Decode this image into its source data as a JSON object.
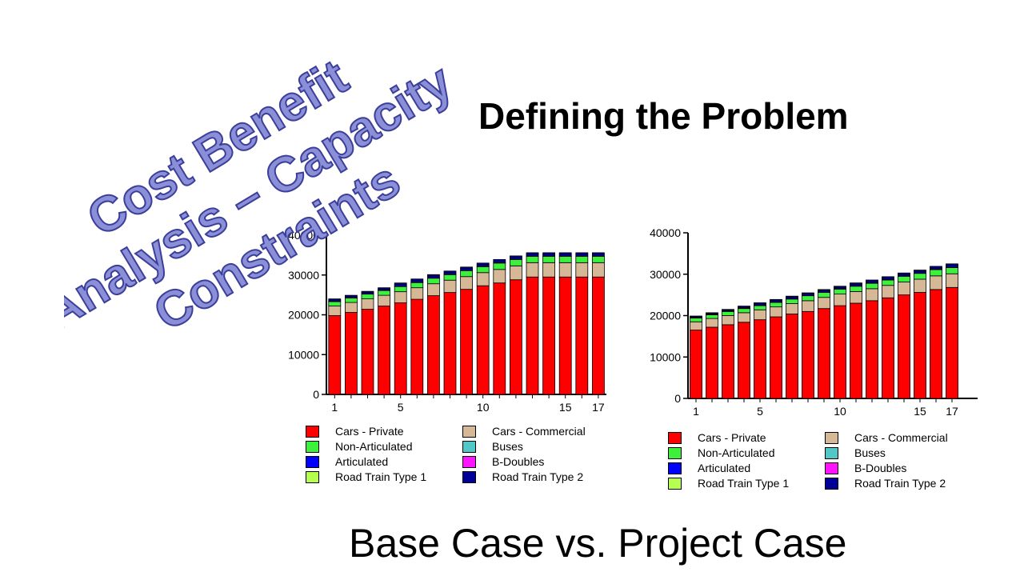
{
  "slide": {
    "heading": "Defining the Problem",
    "subheading": "Base Case vs. Project Case",
    "stamp_lines": [
      "Cost Benefit",
      "Analysis – Capacity",
      "Constraints"
    ]
  },
  "colors": {
    "Cars - Private": "#ff0000",
    "Cars - Commercial": "#d6b896",
    "Non-Articulated": "#3cf03c",
    "Buses": "#50c8c8",
    "Articulated": "#0000ff",
    "B-Doubles": "#ff14ff",
    "Road Train Type 1": "#b4ff50",
    "Road Train Type 2": "#000099",
    "stamp": "#8a8fd8",
    "stamp_outline": "#3c3f9a"
  },
  "chart_data": [
    {
      "type": "bar",
      "stacked": true,
      "title": "",
      "xlabel": "",
      "ylabel": "",
      "categories": [
        1,
        2,
        3,
        4,
        5,
        6,
        7,
        8,
        9,
        10,
        11,
        12,
        13,
        14,
        15,
        16,
        17
      ],
      "x_tick_labels": [
        "1",
        "5",
        "10",
        "15",
        "17"
      ],
      "y_ticks": [
        0,
        10000,
        20000,
        30000,
        40000
      ],
      "ylim": [
        0,
        40000
      ],
      "grid": false,
      "legend": "bottom",
      "series": [
        {
          "name": "Cars - Private",
          "values": [
            19800,
            20600,
            21400,
            22200,
            23000,
            23900,
            24800,
            25600,
            26400,
            27300,
            28000,
            28800,
            29500,
            29500,
            29500,
            29500,
            29500
          ]
        },
        {
          "name": "Cars - Commercial",
          "values": [
            2400,
            2500,
            2600,
            2700,
            2800,
            2900,
            3000,
            3100,
            3200,
            3300,
            3400,
            3500,
            3600,
            3600,
            3600,
            3600,
            3600
          ]
        },
        {
          "name": "Non-Articulated",
          "values": [
            1100,
            1100,
            1200,
            1200,
            1300,
            1300,
            1400,
            1400,
            1500,
            1500,
            1600,
            1600,
            1600,
            1600,
            1600,
            1600,
            1600
          ]
        },
        {
          "name": "Buses",
          "values": [
            100,
            100,
            100,
            100,
            100,
            100,
            100,
            100,
            100,
            100,
            100,
            100,
            100,
            100,
            100,
            100,
            100
          ]
        },
        {
          "name": "Articulated",
          "values": [
            300,
            300,
            300,
            300,
            400,
            400,
            400,
            400,
            400,
            400,
            400,
            400,
            400,
            400,
            400,
            400,
            400
          ]
        },
        {
          "name": "B-Doubles",
          "values": [
            0,
            0,
            0,
            0,
            0,
            0,
            0,
            0,
            0,
            0,
            0,
            0,
            0,
            0,
            0,
            0,
            0
          ]
        },
        {
          "name": "Road Train Type 1",
          "values": [
            0,
            0,
            0,
            0,
            0,
            0,
            0,
            0,
            0,
            0,
            0,
            0,
            0,
            0,
            0,
            0,
            0
          ]
        },
        {
          "name": "Road Train Type 2",
          "values": [
            300,
            300,
            300,
            300,
            400,
            400,
            400,
            400,
            400,
            400,
            400,
            400,
            400,
            400,
            400,
            400,
            400
          ]
        }
      ]
    },
    {
      "type": "bar",
      "stacked": true,
      "title": "",
      "xlabel": "",
      "ylabel": "",
      "categories": [
        1,
        2,
        3,
        4,
        5,
        6,
        7,
        8,
        9,
        10,
        11,
        12,
        13,
        14,
        15,
        16,
        17
      ],
      "x_tick_labels": [
        "1",
        "5",
        "10",
        "15",
        "17"
      ],
      "y_ticks": [
        0,
        10000,
        20000,
        30000,
        40000
      ],
      "ylim": [
        0,
        40000
      ],
      "grid": false,
      "legend": "bottom",
      "series": [
        {
          "name": "Cars - Private",
          "values": [
            16500,
            17200,
            17800,
            18400,
            19000,
            19700,
            20400,
            21000,
            21700,
            22400,
            23000,
            23600,
            24300,
            25000,
            25600,
            26300,
            26800
          ]
        },
        {
          "name": "Cars - Commercial",
          "values": [
            2000,
            2100,
            2200,
            2300,
            2400,
            2400,
            2500,
            2600,
            2700,
            2800,
            2800,
            2900,
            3000,
            3100,
            3200,
            3300,
            3300
          ]
        },
        {
          "name": "Non-Articulated",
          "values": [
            900,
            900,
            1000,
            1000,
            1000,
            1100,
            1100,
            1200,
            1200,
            1200,
            1300,
            1300,
            1300,
            1400,
            1400,
            1500,
            1500
          ]
        },
        {
          "name": "Buses",
          "values": [
            100,
            100,
            100,
            100,
            100,
            100,
            100,
            100,
            100,
            100,
            100,
            100,
            100,
            100,
            100,
            100,
            100
          ]
        },
        {
          "name": "Articulated",
          "values": [
            200,
            200,
            200,
            200,
            300,
            300,
            300,
            300,
            300,
            300,
            300,
            300,
            300,
            300,
            300,
            300,
            400
          ]
        },
        {
          "name": "B-Doubles",
          "values": [
            0,
            0,
            0,
            0,
            0,
            0,
            0,
            0,
            0,
            0,
            0,
            0,
            0,
            0,
            0,
            0,
            0
          ]
        },
        {
          "name": "Road Train Type 1",
          "values": [
            0,
            0,
            0,
            0,
            0,
            0,
            0,
            0,
            0,
            0,
            0,
            0,
            0,
            0,
            0,
            0,
            0
          ]
        },
        {
          "name": "Road Train Type 2",
          "values": [
            200,
            200,
            200,
            300,
            300,
            300,
            300,
            300,
            300,
            300,
            400,
            400,
            400,
            400,
            400,
            400,
            400
          ]
        }
      ]
    }
  ]
}
